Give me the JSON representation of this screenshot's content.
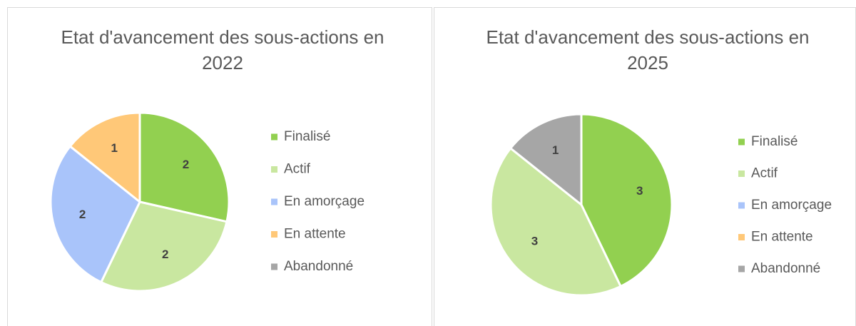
{
  "chart_data": [
    {
      "type": "pie",
      "title": "Etat d'avancement des sous-actions en 2022",
      "categories": [
        "Finalisé",
        "Actif",
        "En amorçage",
        "En attente",
        "Abandonné"
      ],
      "values": [
        2,
        2,
        2,
        1,
        0
      ],
      "colors": [
        "#92d050",
        "#c9e7a0",
        "#a9c4fa",
        "#ffc878",
        "#a6a6a6"
      ],
      "legend": "right"
    },
    {
      "type": "pie",
      "title": "Etat d'avancement des sous-actions en 2025",
      "categories": [
        "Finalisé",
        "Actif",
        "En amorçage",
        "En attente",
        "Abandonné"
      ],
      "values": [
        3,
        3,
        0,
        0,
        1
      ],
      "colors": [
        "#92d050",
        "#c9e7a0",
        "#a9c4fa",
        "#ffc878",
        "#a6a6a6"
      ],
      "legend": "right"
    }
  ]
}
